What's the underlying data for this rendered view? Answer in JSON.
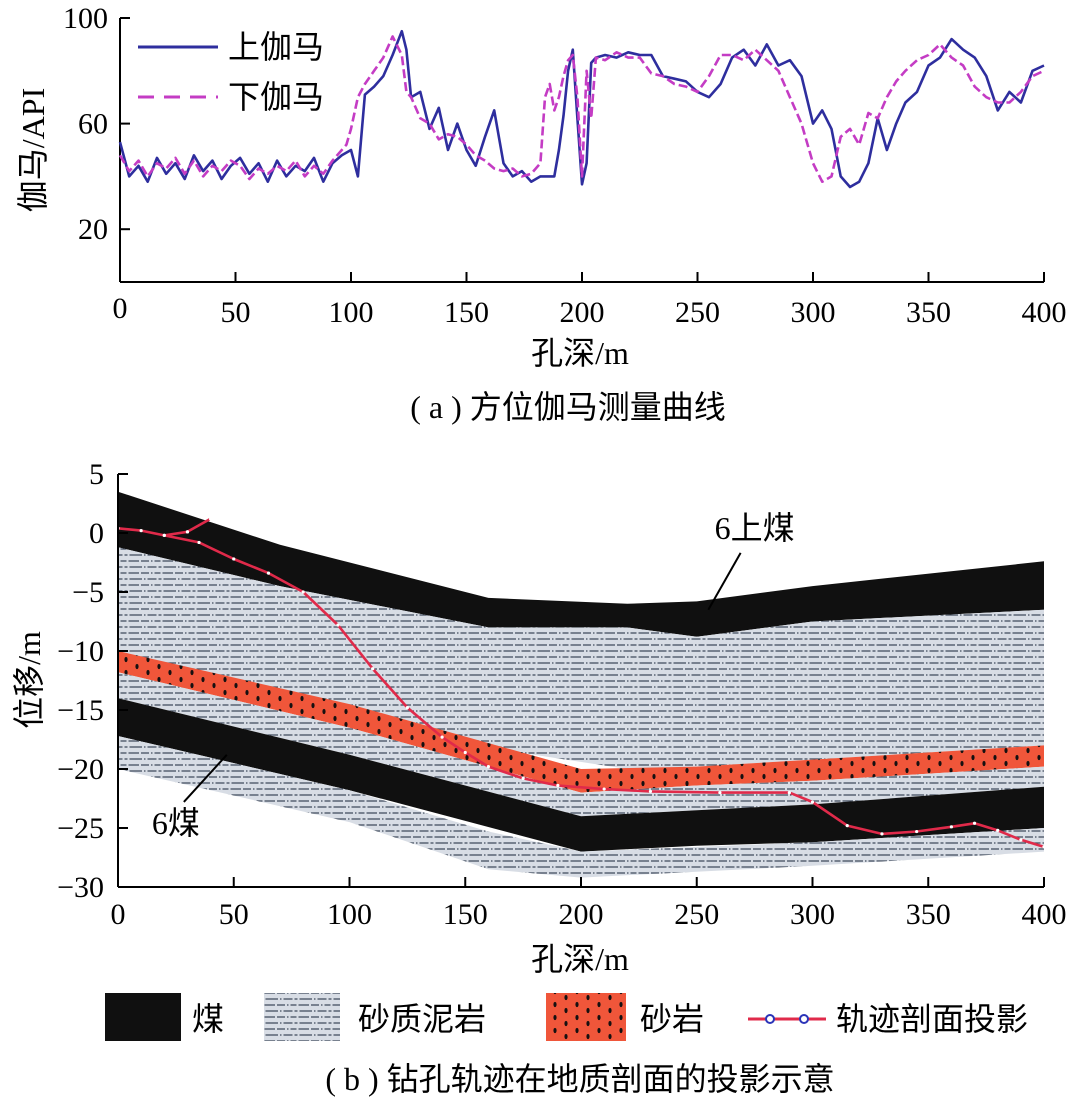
{
  "chart_data": [
    {
      "type": "line",
      "caption": "( a ) 方位伽马测量曲线",
      "xlabel": "孔深/m",
      "ylabel": "伽马/API",
      "xlim": [
        0,
        400
      ],
      "ylim": [
        0,
        100
      ],
      "xticks": [
        "0",
        "50",
        "100",
        "150",
        "200",
        "250",
        "300",
        "350",
        "400"
      ],
      "yticks": [
        "20",
        "60",
        "100"
      ],
      "series": [
        {
          "name": "上伽马",
          "color": "#2e2e9e",
          "style": "solid",
          "x": [
            0,
            4,
            8,
            12,
            16,
            20,
            24,
            28,
            32,
            36,
            40,
            44,
            48,
            52,
            56,
            60,
            64,
            68,
            72,
            76,
            80,
            84,
            88,
            92,
            96,
            100,
            103,
            106,
            110,
            114,
            118,
            122,
            124,
            126,
            130,
            134,
            138,
            142,
            146,
            150,
            154,
            158,
            162,
            166,
            170,
            174,
            178,
            182,
            186,
            188,
            190,
            192,
            194,
            196,
            198,
            200,
            202,
            204,
            206,
            210,
            215,
            220,
            225,
            230,
            235,
            240,
            245,
            250,
            255,
            260,
            265,
            270,
            275,
            280,
            285,
            290,
            295,
            300,
            304,
            308,
            312,
            316,
            320,
            324,
            328,
            332,
            336,
            340,
            345,
            350,
            355,
            360,
            365,
            370,
            375,
            380,
            385,
            390,
            395,
            400
          ],
          "y": [
            53,
            40,
            44,
            38,
            47,
            41,
            45,
            39,
            48,
            42,
            46,
            39,
            44,
            47,
            41,
            45,
            38,
            46,
            40,
            44,
            42,
            47,
            38,
            45,
            48,
            50,
            40,
            71,
            74,
            78,
            86,
            95,
            88,
            70,
            72,
            58,
            66,
            50,
            60,
            50,
            44,
            55,
            65,
            45,
            40,
            42,
            38,
            40,
            40,
            40,
            50,
            63,
            80,
            88,
            62,
            37,
            45,
            83,
            85,
            86,
            85,
            87,
            86,
            86,
            78,
            77,
            76,
            72,
            70,
            75,
            85,
            88,
            82,
            90,
            82,
            84,
            78,
            60,
            65,
            58,
            40,
            36,
            38,
            45,
            62,
            50,
            60,
            68,
            72,
            82,
            85,
            92,
            88,
            85,
            78,
            65,
            72,
            68,
            80,
            82
          ]
        },
        {
          "name": "下伽马",
          "color": "#c43cc4",
          "style": "dashed",
          "x": [
            0,
            4,
            8,
            12,
            16,
            20,
            24,
            28,
            32,
            36,
            40,
            44,
            48,
            52,
            56,
            60,
            64,
            68,
            72,
            76,
            80,
            84,
            88,
            92,
            96,
            98,
            100,
            103,
            106,
            110,
            114,
            118,
            122,
            124,
            126,
            130,
            134,
            138,
            142,
            146,
            150,
            154,
            158,
            162,
            166,
            170,
            174,
            178,
            182,
            184,
            186,
            188,
            190,
            192,
            194,
            196,
            198,
            200,
            202,
            204,
            206,
            210,
            215,
            220,
            225,
            230,
            235,
            240,
            245,
            250,
            255,
            260,
            265,
            270,
            275,
            280,
            285,
            290,
            295,
            300,
            304,
            308,
            312,
            316,
            320,
            324,
            328,
            332,
            336,
            340,
            345,
            350,
            355,
            360,
            365,
            370,
            375,
            380,
            385,
            390,
            395,
            400
          ],
          "y": [
            48,
            42,
            46,
            40,
            45,
            43,
            47,
            41,
            46,
            40,
            44,
            42,
            46,
            44,
            39,
            43,
            41,
            44,
            42,
            46,
            40,
            44,
            41,
            46,
            50,
            52,
            58,
            70,
            75,
            80,
            85,
            93,
            86,
            72,
            70,
            62,
            60,
            54,
            56,
            55,
            52,
            48,
            46,
            43,
            42,
            43,
            40,
            41,
            45,
            70,
            75,
            65,
            70,
            78,
            84,
            86,
            70,
            40,
            80,
            62,
            85,
            84,
            87,
            85,
            85,
            79,
            78,
            75,
            74,
            72,
            78,
            86,
            86,
            84,
            88,
            84,
            80,
            70,
            60,
            45,
            38,
            40,
            55,
            58,
            52,
            64,
            62,
            70,
            76,
            80,
            84,
            86,
            90,
            85,
            82,
            74,
            70,
            68,
            68,
            72,
            78,
            80
          ]
        }
      ],
      "legend": [
        "上伽马",
        "下伽马"
      ],
      "legend_position": "top-left"
    },
    {
      "type": "area",
      "caption": "( b ) 钻孔轨迹在地质剖面的投影示意",
      "xlabel": "孔深/m",
      "ylabel": "位移/m",
      "xlim": [
        0,
        400
      ],
      "ylim": [
        -30,
        5
      ],
      "xticks": [
        "0",
        "50",
        "100",
        "150",
        "200",
        "250",
        "300",
        "350",
        "400"
      ],
      "yticks": [
        "5",
        "0",
        "−5",
        "−10",
        "−15",
        "−20",
        "−25",
        "−30"
      ],
      "colors": {
        "coal": "#101010",
        "mudstone": "#d8dde5",
        "sandstone": "#f0563a",
        "trajectory": "#e02a4a"
      },
      "layers": [
        {
          "name": "6上煤",
          "material": "coal",
          "x": [
            0,
            70,
            160,
            220,
            250,
            300,
            400
          ],
          "top": [
            3.5,
            -1,
            -5.5,
            -6,
            -5.8,
            -4.5,
            -2.4
          ],
          "bottom": [
            -1.2,
            -4.5,
            -8,
            -8,
            -8.8,
            -7.5,
            -6.5
          ]
        },
        {
          "name": "砂质泥岩-上",
          "material": "mudstone",
          "x": [
            0,
            70,
            160,
            220,
            250,
            300,
            400
          ],
          "top": [
            -1.2,
            -4.5,
            -8,
            -8,
            -8.8,
            -7.5,
            -6.5
          ],
          "bottom": [
            -10,
            -13.5,
            -18.2,
            -20,
            -19.8,
            -19.2,
            -18
          ]
        },
        {
          "name": "砂岩",
          "material": "sandstone",
          "x": [
            0,
            100,
            200,
            250,
            300,
            400
          ],
          "top": [
            -10,
            -14.5,
            -20,
            -19.8,
            -19.2,
            -18
          ],
          "bottom": [
            -11.8,
            -16.5,
            -22,
            -21.4,
            -21,
            -19.8
          ]
        },
        {
          "name": "砂质泥岩-中",
          "material": "mudstone",
          "x": [
            0,
            100,
            200,
            250,
            300,
            400
          ],
          "top": [
            -11.8,
            -16.5,
            -22,
            -21.4,
            -21,
            -19.8
          ],
          "bottom": [
            -14,
            -18.8,
            -24,
            -23.5,
            -23,
            -21.5
          ]
        },
        {
          "name": "6煤",
          "material": "coal",
          "x": [
            0,
            100,
            200,
            250,
            300,
            400
          ],
          "top": [
            -14,
            -18.8,
            -24,
            -23.5,
            -23,
            -21.5
          ],
          "bottom": [
            -17.2,
            -21.8,
            -27,
            -26.5,
            -26.2,
            -25
          ]
        },
        {
          "name": "砂质泥岩-下",
          "material": "mudstone",
          "x": [
            0,
            100,
            160,
            200,
            300,
            400
          ],
          "top": [
            -17.2,
            -21.8,
            -25.3,
            -27,
            -26.2,
            -25
          ],
          "bottom": [
            -20,
            -24.5,
            -28.5,
            -29.2,
            -28.2,
            -27
          ]
        }
      ],
      "trajectory": {
        "name": "轨迹剖面投影",
        "x": [
          0,
          10,
          20,
          30,
          40,
          30,
          20,
          35,
          50,
          65,
          80,
          95,
          110,
          125,
          140,
          150,
          160,
          175,
          190,
          210,
          230,
          260,
          290,
          300,
          315,
          330,
          345,
          360,
          370,
          380,
          390,
          400
        ],
        "y": [
          0.4,
          0.2,
          -0.2,
          0.1,
          1.2,
          0.1,
          -0.2,
          -0.8,
          -2.2,
          -3.4,
          -5,
          -7.8,
          -11.5,
          -14.8,
          -17.3,
          -18.6,
          -19.8,
          -20.8,
          -21.4,
          -21.7,
          -21.9,
          -22,
          -22,
          -22.8,
          -24.8,
          -25.5,
          -25.3,
          -24.9,
          -24.6,
          -25.2,
          -26,
          -26.6
        ]
      },
      "annotations": [
        {
          "text": "6上煤",
          "x": 275,
          "y": -0.5,
          "arrow_to": [
            255,
            -6.5
          ]
        },
        {
          "text": "6煤",
          "x": 25,
          "y": -25.5,
          "arrow_to": [
            47,
            -18.8
          ]
        }
      ],
      "legend": [
        {
          "label": "煤",
          "material": "coal"
        },
        {
          "label": "砂质泥岩",
          "material": "mudstone"
        },
        {
          "label": "砂岩",
          "material": "sandstone"
        },
        {
          "label": "轨迹剖面投影",
          "material": "trajectory"
        }
      ],
      "legend_position": "bottom"
    }
  ]
}
